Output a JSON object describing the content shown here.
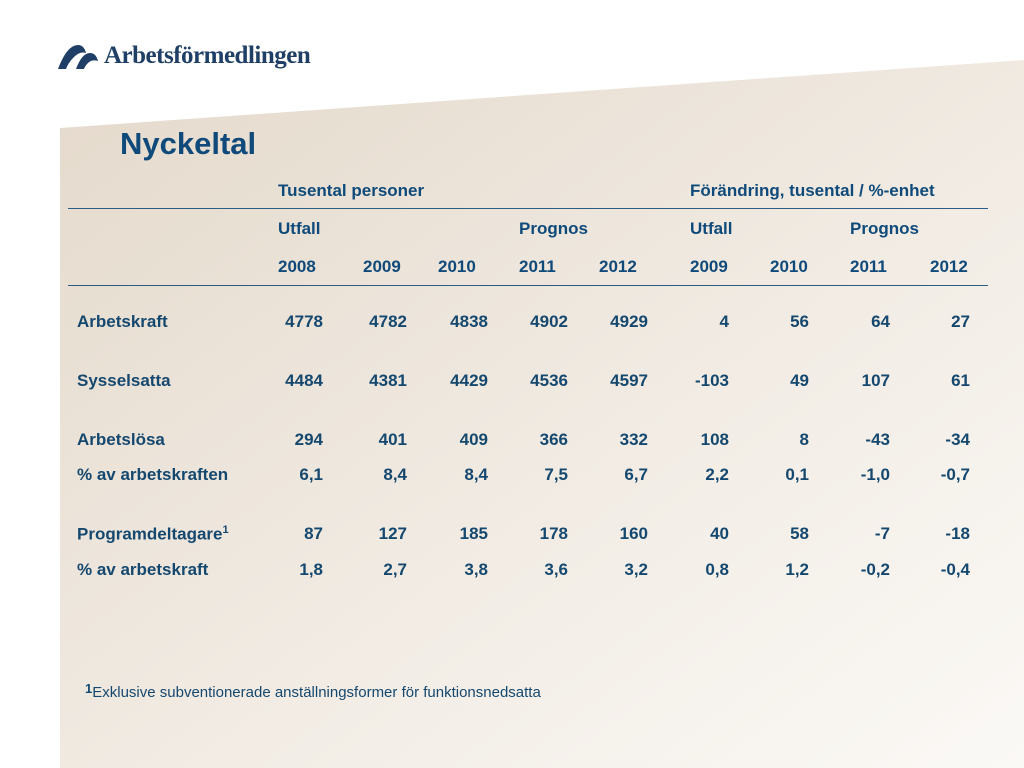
{
  "colors": {
    "accent": "#0f4a7a",
    "text": "#15486f",
    "panel": "#ebe2d6"
  },
  "logo": {
    "text": "Arbetsförmedlingen"
  },
  "title": "Nyckeltal",
  "header": {
    "group_left": "Tusental personer",
    "group_right": "Förändring, tusental / %-enhet",
    "sub_left_utfall": "Utfall",
    "sub_left_prognos": "Prognos",
    "sub_right_utfall": "Utfall",
    "sub_right_prognos": "Prognos",
    "years": [
      "2008",
      "2009",
      "2010",
      "2011",
      "2012",
      "2009",
      "2010",
      "2011",
      "2012"
    ]
  },
  "rows": [
    {
      "label": "Arbetskraft",
      "sup": "",
      "values": [
        "4778",
        "4782",
        "4838",
        "4902",
        "4929",
        "4",
        "56",
        "64",
        "27"
      ]
    },
    {
      "label": "Sysselsatta",
      "sup": "",
      "values": [
        "4484",
        "4381",
        "4429",
        "4536",
        "4597",
        "-103",
        "49",
        "107",
        "61"
      ]
    },
    {
      "label": "Arbetslösa",
      "sup": "",
      "values": [
        "294",
        "401",
        "409",
        "366",
        "332",
        "108",
        "8",
        "-43",
        "-34"
      ]
    },
    {
      "label": "% av arbetskraften",
      "sup": "",
      "values": [
        "6,1",
        "8,4",
        "8,4",
        "7,5",
        "6,7",
        "2,2",
        "0,1",
        "-1,0",
        "-0,7"
      ]
    },
    {
      "label": "Programdeltagare",
      "sup": "1",
      "values": [
        "87",
        "127",
        "185",
        "178",
        "160",
        "40",
        "58",
        "-7",
        "-18"
      ]
    },
    {
      "label": "% av arbetskraft",
      "sup": "",
      "values": [
        "1,8",
        "2,7",
        "3,8",
        "3,6",
        "3,2",
        "0,8",
        "1,2",
        "-0,2",
        "-0,4"
      ]
    }
  ],
  "footnote": {
    "marker": "1",
    "text": "Exklusive subventionerade anställningsformer för funktionsnedsatta"
  }
}
